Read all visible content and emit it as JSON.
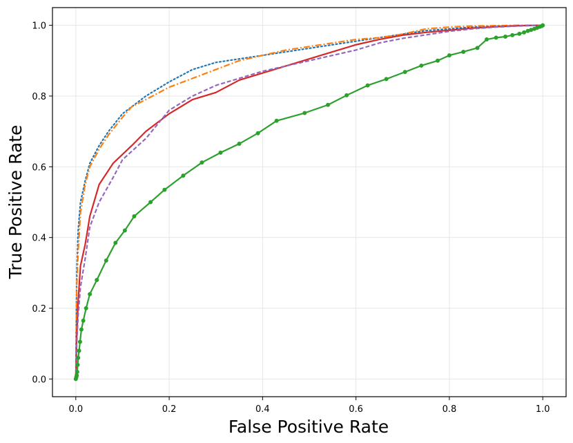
{
  "chart_data": {
    "type": "line",
    "title": "",
    "xlabel": "False Positive Rate",
    "ylabel": "True Positive Rate",
    "xlim": [
      -0.05,
      1.05
    ],
    "ylim": [
      -0.05,
      1.05
    ],
    "xticks": [
      "0.0",
      "0.2",
      "0.4",
      "0.6",
      "0.8",
      "1.0"
    ],
    "yticks": [
      "0.0",
      "0.2",
      "0.4",
      "0.6",
      "0.8",
      "1.0"
    ],
    "grid": true,
    "legend": "none",
    "series": [
      {
        "color": "#1f77b4",
        "style": "dotted",
        "markers": false,
        "x": [
          0.0,
          0.002,
          0.005,
          0.01,
          0.02,
          0.03,
          0.05,
          0.07,
          0.1,
          0.12,
          0.15,
          0.2,
          0.25,
          0.3,
          0.35,
          0.4,
          0.45,
          0.5,
          0.55,
          0.6,
          0.65,
          0.7,
          0.75,
          0.8,
          0.85,
          0.9,
          0.95,
          1.0
        ],
        "y": [
          0.0,
          0.3,
          0.42,
          0.5,
          0.56,
          0.61,
          0.66,
          0.7,
          0.75,
          0.77,
          0.8,
          0.84,
          0.875,
          0.895,
          0.905,
          0.915,
          0.925,
          0.935,
          0.945,
          0.955,
          0.965,
          0.975,
          0.985,
          0.99,
          0.995,
          0.998,
          0.999,
          1.0
        ]
      },
      {
        "color": "#ff7f0e",
        "style": "dashdot",
        "markers": false,
        "x": [
          0.0,
          0.002,
          0.005,
          0.01,
          0.02,
          0.03,
          0.05,
          0.07,
          0.1,
          0.12,
          0.15,
          0.2,
          0.25,
          0.3,
          0.35,
          0.4,
          0.45,
          0.5,
          0.55,
          0.6,
          0.65,
          0.7,
          0.75,
          0.8,
          0.85,
          0.9,
          0.95,
          1.0
        ],
        "y": [
          0.0,
          0.26,
          0.36,
          0.47,
          0.55,
          0.6,
          0.65,
          0.69,
          0.74,
          0.77,
          0.79,
          0.825,
          0.85,
          0.875,
          0.9,
          0.915,
          0.93,
          0.94,
          0.95,
          0.96,
          0.965,
          0.975,
          0.99,
          0.995,
          0.998,
          0.999,
          1.0,
          1.0
        ]
      },
      {
        "color": "#d62728",
        "style": "solid",
        "markers": false,
        "x": [
          0.0,
          0.002,
          0.005,
          0.01,
          0.02,
          0.03,
          0.05,
          0.08,
          0.12,
          0.15,
          0.2,
          0.25,
          0.3,
          0.35,
          0.4,
          0.45,
          0.5,
          0.55,
          0.6,
          0.65,
          0.7,
          0.75,
          0.8,
          0.85,
          0.9,
          0.95,
          1.0
        ],
        "y": [
          0.0,
          0.12,
          0.22,
          0.32,
          0.38,
          0.46,
          0.55,
          0.61,
          0.66,
          0.7,
          0.75,
          0.79,
          0.81,
          0.845,
          0.865,
          0.885,
          0.905,
          0.925,
          0.945,
          0.96,
          0.972,
          0.98,
          0.986,
          0.992,
          0.996,
          0.999,
          1.0
        ]
      },
      {
        "color": "#9467bd",
        "style": "dashed",
        "markers": false,
        "x": [
          0.0,
          0.002,
          0.005,
          0.01,
          0.02,
          0.03,
          0.05,
          0.08,
          0.1,
          0.15,
          0.2,
          0.25,
          0.3,
          0.35,
          0.4,
          0.45,
          0.5,
          0.55,
          0.6,
          0.65,
          0.7,
          0.75,
          0.8,
          0.85,
          0.9,
          0.95,
          1.0
        ],
        "y": [
          0.0,
          0.1,
          0.18,
          0.26,
          0.34,
          0.43,
          0.5,
          0.57,
          0.62,
          0.68,
          0.76,
          0.8,
          0.83,
          0.85,
          0.87,
          0.885,
          0.9,
          0.915,
          0.93,
          0.95,
          0.963,
          0.973,
          0.983,
          0.99,
          0.995,
          0.998,
          1.0
        ]
      },
      {
        "color": "#2ca02c",
        "style": "solid",
        "markers": true,
        "x": [
          0.0,
          0.001,
          0.002,
          0.003,
          0.004,
          0.005,
          0.007,
          0.009,
          0.012,
          0.016,
          0.022,
          0.03,
          0.045,
          0.065,
          0.085,
          0.105,
          0.125,
          0.16,
          0.19,
          0.23,
          0.27,
          0.31,
          0.35,
          0.39,
          0.43,
          0.49,
          0.54,
          0.58,
          0.625,
          0.665,
          0.705,
          0.74,
          0.775,
          0.8,
          0.83,
          0.86,
          0.88,
          0.9,
          0.92,
          0.935,
          0.95,
          0.96,
          0.968,
          0.975,
          0.982,
          0.988,
          0.994,
          0.998,
          1.0
        ],
        "y": [
          0.0,
          0.005,
          0.01,
          0.02,
          0.04,
          0.06,
          0.08,
          0.105,
          0.14,
          0.165,
          0.2,
          0.24,
          0.28,
          0.335,
          0.385,
          0.42,
          0.46,
          0.5,
          0.535,
          0.575,
          0.612,
          0.64,
          0.665,
          0.695,
          0.73,
          0.752,
          0.775,
          0.802,
          0.83,
          0.848,
          0.868,
          0.886,
          0.9,
          0.915,
          0.925,
          0.936,
          0.96,
          0.965,
          0.968,
          0.972,
          0.976,
          0.98,
          0.984,
          0.987,
          0.99,
          0.993,
          0.996,
          0.998,
          1.0
        ]
      }
    ]
  }
}
